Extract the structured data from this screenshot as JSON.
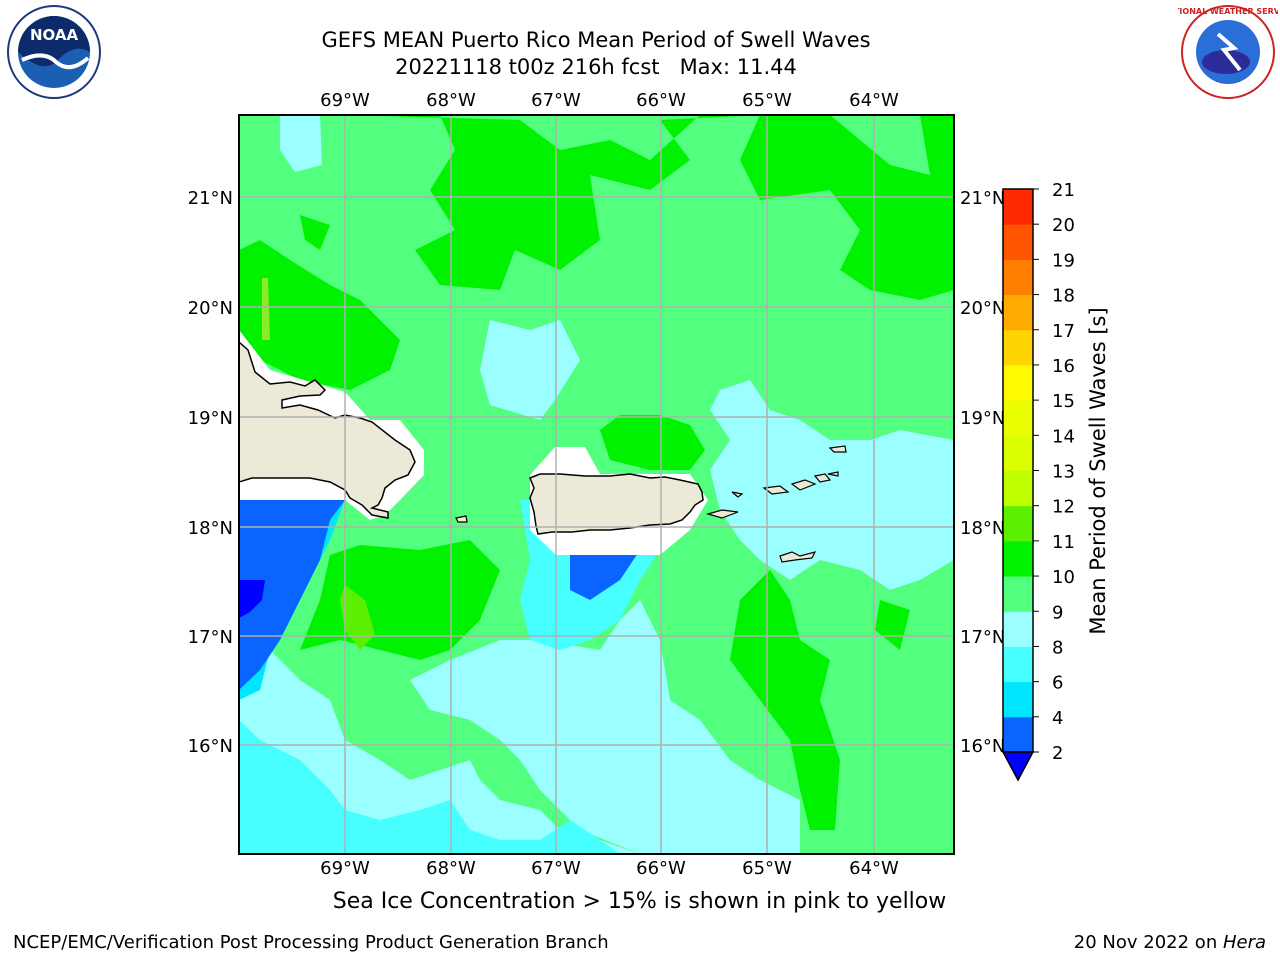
{
  "title": {
    "line1": "GEFS MEAN Puerto Rico Mean Period of Swell Waves",
    "line2_date": "20221118 t00z 216h fcst",
    "line2_max": "Max: 11.44"
  },
  "map": {
    "lon_labels": [
      "69°W",
      "68°W",
      "67°W",
      "66°W",
      "65°W",
      "64°W"
    ],
    "lat_labels": [
      "21°N",
      "20°N",
      "19°N",
      "18°N",
      "17°N",
      "16°N"
    ],
    "extent": {
      "lon_min": -70.0,
      "lon_max": -63.25,
      "lat_min": 15.0,
      "lat_max": 21.75
    },
    "colors": {
      "land": "#ede9d8",
      "mask": "#ffffff",
      "grid": "#b0b0b0",
      "coast": "#000000"
    }
  },
  "colorbar": {
    "label": "Mean Period of Swell Waves [s]",
    "ticks": [
      "2",
      "4",
      "6",
      "8",
      "9",
      "10",
      "11",
      "12",
      "13",
      "14",
      "15",
      "16",
      "17",
      "18",
      "19",
      "20",
      "21"
    ],
    "colors": [
      "#0a64ff",
      "#00e6ff",
      "#48ffff",
      "#9bffff",
      "#52ff7e",
      "#00f200",
      "#5bef00",
      "#bfff00",
      "#dbff00",
      "#ebff00",
      "#fffa00",
      "#ffd400",
      "#ffaa00",
      "#ff7f00",
      "#ff5500",
      "#ff2a00",
      "#ff0000"
    ],
    "extend_color": "#0000ff"
  },
  "caption": "Sea Ice Concentration > 15% is shown in pink to yellow",
  "footer": {
    "left": "NCEP/EMC/Verification Post Processing Product Generation Branch",
    "right_date": "20 Nov 2022 on ",
    "right_machine": "Hera"
  },
  "logos": {
    "noaa_text": "NOAA",
    "nws_text": "NATIONAL WEATHER SERVICE"
  }
}
